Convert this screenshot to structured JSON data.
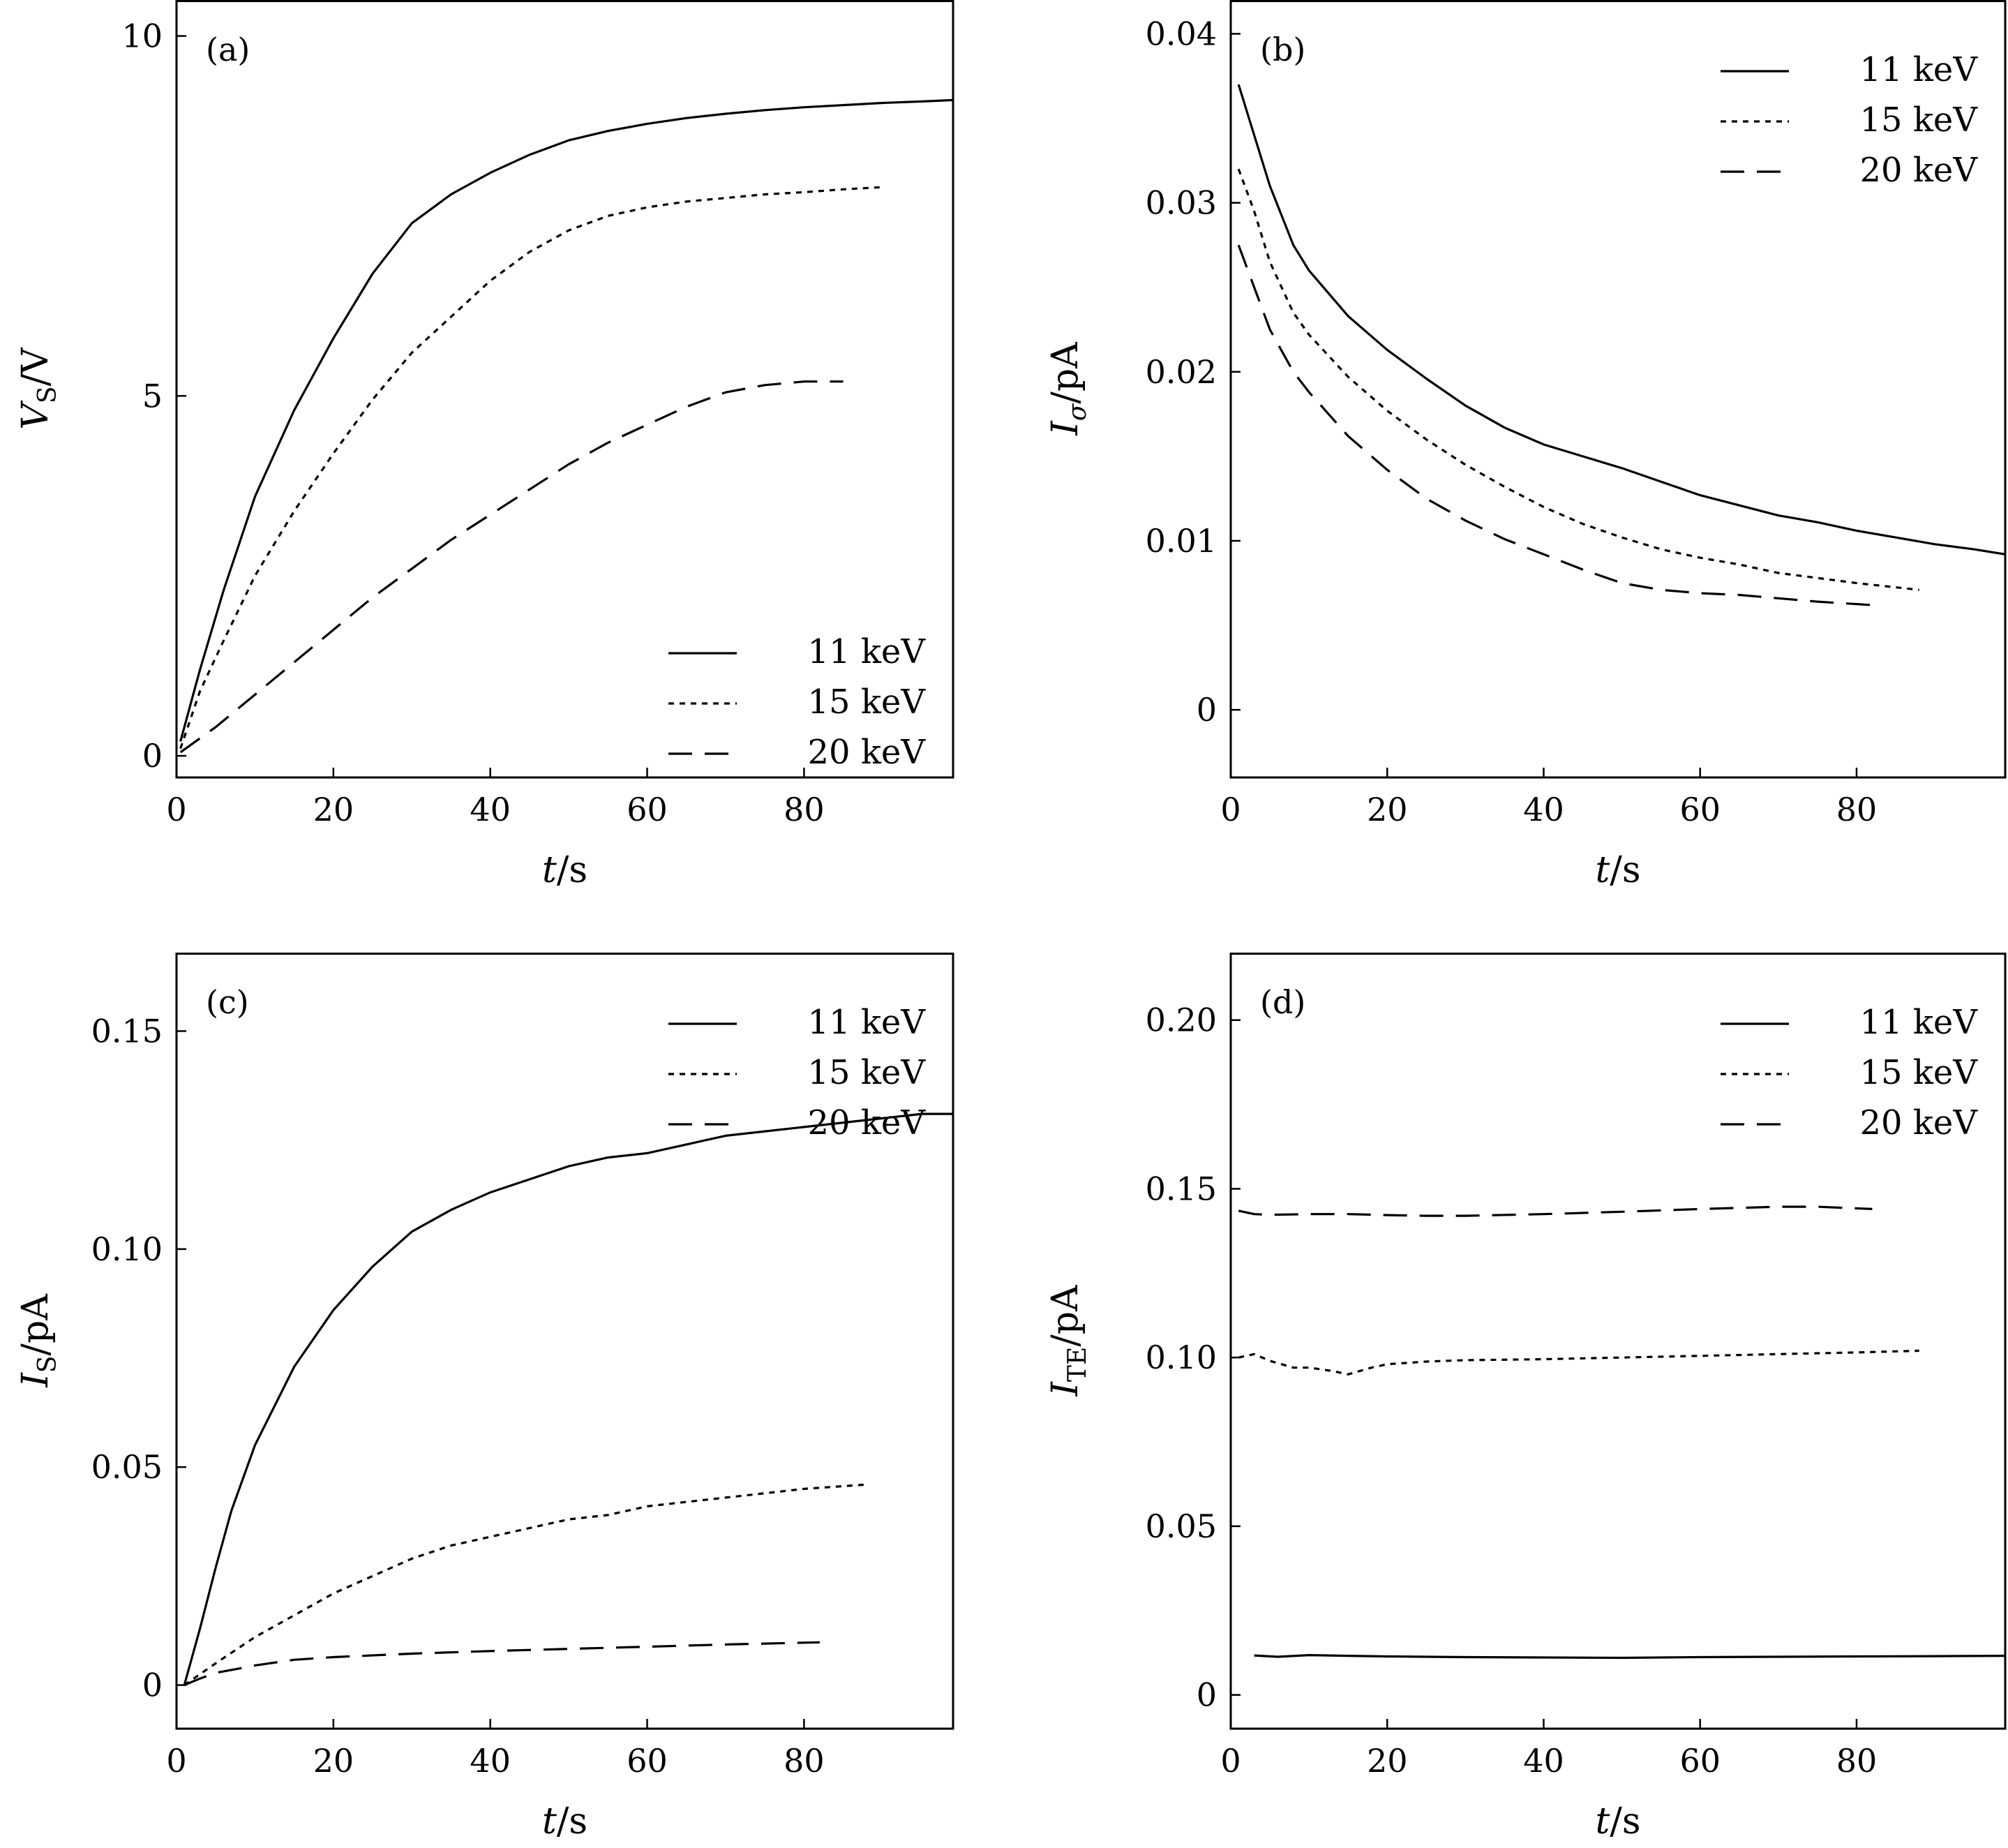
{
  "chart_data": [
    {
      "type": "line",
      "panel_label": "(a)",
      "xlabel_var": "t",
      "xlabel_unit": "/s",
      "ylabel_var": "V",
      "ylabel_sub": "S",
      "ylabel_unit": "/V",
      "xlim": [
        0,
        99
      ],
      "ylim": [
        -0.3,
        10.5
      ],
      "xticks": [
        0,
        20,
        40,
        60,
        80
      ],
      "xticklabels": [
        "0",
        "20",
        "40",
        "60",
        "80"
      ],
      "yticks": [
        0,
        5,
        10
      ],
      "yticklabels": [
        "0",
        "5",
        "10"
      ],
      "legend_position": "lower-right",
      "series": [
        {
          "name": "11 keV",
          "style": "solid",
          "x": [
            0.5,
            3,
            6,
            10,
            15,
            20,
            25,
            30,
            35,
            40,
            45,
            50,
            55,
            60,
            65,
            70,
            75,
            80,
            85,
            90,
            95,
            99
          ],
          "y": [
            0.2,
            1.2,
            2.3,
            3.6,
            4.8,
            5.8,
            6.7,
            7.4,
            7.8,
            8.1,
            8.35,
            8.55,
            8.68,
            8.78,
            8.86,
            8.92,
            8.97,
            9.01,
            9.04,
            9.07,
            9.09,
            9.11
          ]
        },
        {
          "name": "15 keV",
          "style": "dotted",
          "x": [
            0.5,
            3,
            6,
            10,
            15,
            20,
            25,
            30,
            35,
            40,
            45,
            50,
            55,
            60,
            65,
            70,
            75,
            80,
            85,
            90
          ],
          "y": [
            0.1,
            0.9,
            1.6,
            2.5,
            3.4,
            4.2,
            4.95,
            5.6,
            6.1,
            6.6,
            7.0,
            7.3,
            7.5,
            7.62,
            7.7,
            7.75,
            7.8,
            7.83,
            7.87,
            7.9
          ]
        },
        {
          "name": "20 keV",
          "style": "dashed",
          "x": [
            0.5,
            5,
            10,
            15,
            20,
            25,
            30,
            35,
            40,
            45,
            50,
            55,
            60,
            65,
            70,
            75,
            80,
            85
          ],
          "y": [
            0.05,
            0.4,
            0.85,
            1.3,
            1.75,
            2.2,
            2.6,
            3.0,
            3.35,
            3.7,
            4.05,
            4.35,
            4.6,
            4.85,
            5.05,
            5.15,
            5.2,
            5.2
          ]
        }
      ]
    },
    {
      "type": "line",
      "panel_label": "(b)",
      "xlabel_var": "t",
      "xlabel_unit": "/s",
      "ylabel_var": "I",
      "ylabel_sub": "σ",
      "ylabel_unit": "/pA",
      "xlim": [
        0,
        99
      ],
      "ylim": [
        -0.004,
        0.042
      ],
      "xticks": [
        0,
        20,
        40,
        60,
        80
      ],
      "xticklabels": [
        "0",
        "20",
        "40",
        "60",
        "80"
      ],
      "yticks": [
        0,
        0.01,
        0.02,
        0.03,
        0.04
      ],
      "yticklabels": [
        "0",
        "0.01",
        "0.02",
        "0.03",
        "0.04"
      ],
      "legend_position": "upper-right",
      "series": [
        {
          "name": "11 keV",
          "style": "solid",
          "x": [
            1,
            3,
            5,
            8,
            10,
            15,
            20,
            25,
            30,
            35,
            40,
            45,
            50,
            55,
            60,
            65,
            70,
            75,
            80,
            85,
            90,
            95,
            99
          ],
          "y": [
            0.037,
            0.034,
            0.031,
            0.0275,
            0.026,
            0.0233,
            0.0213,
            0.0196,
            0.018,
            0.0167,
            0.0157,
            0.015,
            0.0143,
            0.0135,
            0.0127,
            0.0121,
            0.0115,
            0.0111,
            0.0106,
            0.0102,
            0.0098,
            0.0095,
            0.0092
          ]
        },
        {
          "name": "15 keV",
          "style": "dotted",
          "x": [
            1,
            3,
            5,
            8,
            10,
            15,
            20,
            25,
            30,
            35,
            40,
            45,
            50,
            55,
            60,
            65,
            70,
            75,
            80,
            88
          ],
          "y": [
            0.032,
            0.0295,
            0.0265,
            0.0235,
            0.0222,
            0.0197,
            0.0177,
            0.016,
            0.0145,
            0.0132,
            0.012,
            0.011,
            0.0102,
            0.0095,
            0.009,
            0.0086,
            0.0081,
            0.0078,
            0.0075,
            0.0071
          ]
        },
        {
          "name": "20 keV",
          "style": "dashed",
          "x": [
            1,
            3,
            5,
            8,
            10,
            15,
            20,
            25,
            30,
            35,
            40,
            45,
            50,
            55,
            60,
            65,
            70,
            75,
            82
          ],
          "y": [
            0.0275,
            0.025,
            0.0225,
            0.02,
            0.0188,
            0.0162,
            0.0142,
            0.0125,
            0.0112,
            0.0101,
            0.0092,
            0.0083,
            0.0075,
            0.0071,
            0.0069,
            0.0068,
            0.0066,
            0.0064,
            0.0062
          ]
        }
      ]
    },
    {
      "type": "line",
      "panel_label": "(c)",
      "xlabel_var": "t",
      "xlabel_unit": "/s",
      "ylabel_var": "I",
      "ylabel_sub": "S",
      "ylabel_unit": "/pA",
      "xlim": [
        0,
        99
      ],
      "ylim": [
        -0.01,
        0.168
      ],
      "xticks": [
        0,
        20,
        40,
        60,
        80
      ],
      "xticklabels": [
        "0",
        "20",
        "40",
        "60",
        "80"
      ],
      "yticks": [
        0,
        0.05,
        0.1,
        0.15
      ],
      "yticklabels": [
        "0",
        "0.05",
        "0.10",
        "0.15"
      ],
      "legend_position": "upper-right",
      "series": [
        {
          "name": "11 keV",
          "style": "solid",
          "x": [
            1,
            3,
            5,
            7,
            10,
            15,
            20,
            25,
            30,
            35,
            40,
            45,
            50,
            55,
            60,
            65,
            70,
            75,
            80,
            85,
            90,
            95,
            99
          ],
          "y": [
            0.0,
            0.013,
            0.027,
            0.04,
            0.055,
            0.073,
            0.086,
            0.096,
            0.104,
            0.109,
            0.113,
            0.116,
            0.119,
            0.121,
            0.122,
            0.124,
            0.126,
            0.127,
            0.128,
            0.129,
            0.13,
            0.131,
            0.131
          ]
        },
        {
          "name": "15 keV",
          "style": "dotted",
          "x": [
            1,
            5,
            10,
            15,
            20,
            25,
            30,
            35,
            40,
            45,
            50,
            55,
            60,
            65,
            70,
            75,
            80,
            88
          ],
          "y": [
            0.0,
            0.005,
            0.011,
            0.016,
            0.021,
            0.025,
            0.029,
            0.032,
            0.034,
            0.036,
            0.038,
            0.039,
            0.041,
            0.042,
            0.043,
            0.044,
            0.045,
            0.046
          ]
        },
        {
          "name": "20 keV",
          "style": "dashed",
          "x": [
            1,
            3,
            5,
            8,
            10,
            15,
            20,
            30,
            40,
            50,
            60,
            70,
            82
          ],
          "y": [
            0.0,
            0.0015,
            0.0028,
            0.0038,
            0.0045,
            0.0058,
            0.0064,
            0.0072,
            0.0078,
            0.0083,
            0.0088,
            0.0093,
            0.0098
          ]
        }
      ]
    },
    {
      "type": "line",
      "panel_label": "(d)",
      "xlabel_var": "t",
      "xlabel_unit": "/s",
      "ylabel_var": "I",
      "ylabel_sub": "TE",
      "ylabel_unit": "/pA",
      "xlim": [
        0,
        99
      ],
      "ylim": [
        -0.01,
        0.22
      ],
      "xticks": [
        0,
        20,
        40,
        60,
        80
      ],
      "xticklabels": [
        "0",
        "20",
        "40",
        "60",
        "80"
      ],
      "yticks": [
        0,
        0.05,
        0.1,
        0.15,
        0.2
      ],
      "yticklabels": [
        "0",
        "0.05",
        "0.10",
        "0.15",
        "0.20"
      ],
      "legend_position": "upper-right",
      "series": [
        {
          "name": "11 keV",
          "style": "solid",
          "x": [
            3,
            6,
            10,
            15,
            20,
            30,
            40,
            50,
            60,
            70,
            80,
            90,
            99
          ],
          "y": [
            0.0117,
            0.0113,
            0.0118,
            0.0116,
            0.0114,
            0.0112,
            0.0111,
            0.011,
            0.0112,
            0.0113,
            0.0114,
            0.0115,
            0.0116
          ]
        },
        {
          "name": "15 keV",
          "style": "dotted",
          "x": [
            1,
            3,
            5,
            8,
            10,
            13,
            15,
            18,
            20,
            25,
            30,
            40,
            50,
            60,
            70,
            80,
            88
          ],
          "y": [
            0.1,
            0.101,
            0.099,
            0.097,
            0.097,
            0.096,
            0.095,
            0.097,
            0.098,
            0.0988,
            0.0992,
            0.0995,
            0.1,
            0.1005,
            0.101,
            0.1015,
            0.102
          ]
        },
        {
          "name": "20 keV",
          "style": "dashed",
          "x": [
            1,
            3,
            5,
            10,
            15,
            20,
            25,
            30,
            40,
            50,
            60,
            70,
            75,
            82
          ],
          "y": [
            0.1435,
            0.1425,
            0.1423,
            0.1425,
            0.1425,
            0.1422,
            0.142,
            0.142,
            0.1425,
            0.1432,
            0.144,
            0.1447,
            0.1447,
            0.144
          ]
        }
      ]
    }
  ]
}
